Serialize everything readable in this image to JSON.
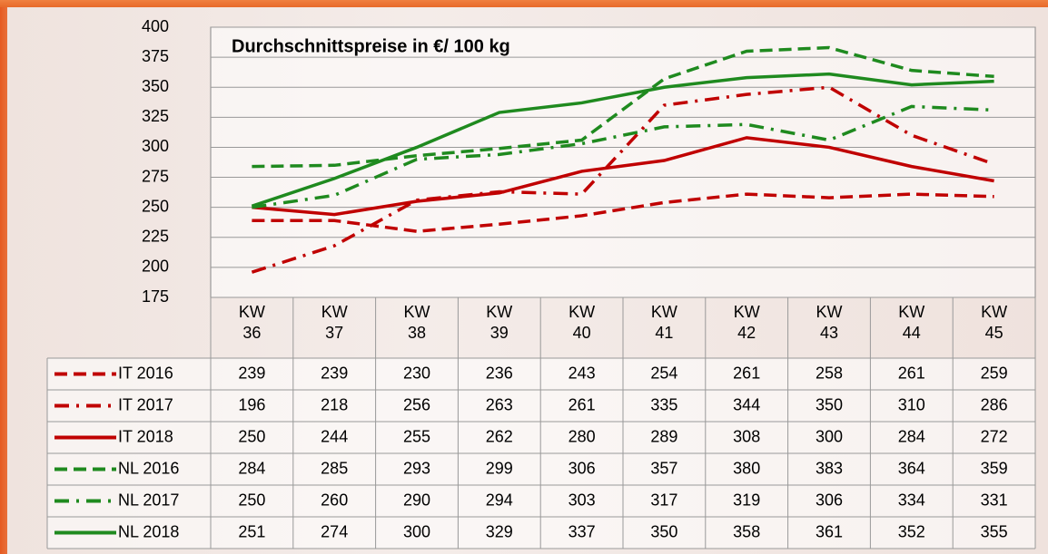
{
  "chart_data": {
    "type": "line",
    "title": "Durchschnittspreise in €/ 100 kg",
    "categories": [
      "KW 36",
      "KW 37",
      "KW 38",
      "KW 39",
      "KW 40",
      "KW 41",
      "KW 42",
      "KW 43",
      "KW 44",
      "KW 45"
    ],
    "series": [
      {
        "name": "IT 2016",
        "color": "#c00000",
        "style": "dashed",
        "values": [
          239,
          239,
          230,
          236,
          243,
          254,
          261,
          258,
          261,
          259
        ]
      },
      {
        "name": "IT 2017",
        "color": "#c00000",
        "style": "dashdot",
        "values": [
          196,
          218,
          256,
          263,
          261,
          335,
          344,
          350,
          310,
          286
        ]
      },
      {
        "name": "IT 2018",
        "color": "#c00000",
        "style": "solid",
        "values": [
          250,
          244,
          255,
          262,
          280,
          289,
          308,
          300,
          284,
          272
        ]
      },
      {
        "name": "NL 2016",
        "color": "#1f8a1f",
        "style": "dashed",
        "values": [
          284,
          285,
          293,
          299,
          306,
          357,
          380,
          383,
          364,
          359
        ]
      },
      {
        "name": "NL 2017",
        "color": "#1f8a1f",
        "style": "dashdot",
        "values": [
          250,
          260,
          290,
          294,
          303,
          317,
          319,
          306,
          334,
          331
        ]
      },
      {
        "name": "NL 2018",
        "color": "#1f8a1f",
        "style": "solid",
        "values": [
          251,
          274,
          300,
          329,
          337,
          350,
          358,
          361,
          352,
          355
        ]
      }
    ],
    "ylim": [
      175,
      400
    ],
    "yticks": [
      175,
      200,
      225,
      250,
      275,
      300,
      325,
      350,
      375,
      400
    ],
    "grid": true
  }
}
